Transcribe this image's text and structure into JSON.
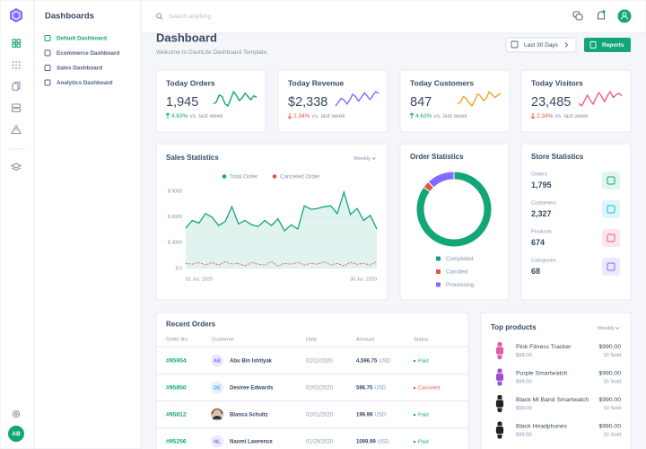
{
  "sidebar": {
    "title": "Dashboards",
    "menu": [
      "Default Dashboard",
      "Ecommerce Dashboard",
      "Sales Dashboard",
      "Analytics Dashboard"
    ],
    "user_initials": "AB"
  },
  "header": {
    "search_placeholder": "Search anything"
  },
  "page": {
    "title": "Dashboard",
    "subtitle": "Welcome to DashLite Dashboard Template.",
    "range_button": "Last 30 Days",
    "reports_button": "Reports"
  },
  "stats": [
    {
      "title": "Today Orders",
      "value": "1,945",
      "change": "4.63%",
      "direction": "up",
      "note": "vs. last week",
      "color": "#12a679",
      "trend": [
        40,
        45,
        62,
        58,
        40,
        35,
        52,
        70,
        60,
        48,
        55,
        66,
        58,
        50,
        60,
        56
      ]
    },
    {
      "title": "Today Revenue",
      "value": "$2,338",
      "change": "2.34%",
      "direction": "down",
      "note": "vs. last week",
      "color": "#816bff",
      "trend": [
        30,
        42,
        55,
        48,
        36,
        50,
        68,
        60,
        45,
        58,
        72,
        62,
        50,
        64,
        76,
        70
      ]
    },
    {
      "title": "Today Customers",
      "value": "847",
      "change": "4.63%",
      "direction": "up",
      "note": "vs. last week",
      "color": "#f4a32c",
      "trend": [
        35,
        40,
        55,
        50,
        38,
        30,
        45,
        62,
        56,
        44,
        50,
        68,
        60,
        52,
        58,
        64
      ]
    },
    {
      "title": "Today Visitors",
      "value": "23,485",
      "change": "2.34%",
      "direction": "down",
      "note": "vs. last week",
      "color": "#ee5d8a",
      "trend": [
        42,
        36,
        48,
        62,
        50,
        40,
        55,
        68,
        58,
        46,
        60,
        70,
        56,
        62,
        66,
        60
      ]
    }
  ],
  "sales": {
    "title": "Sales Statistics",
    "period": "Weekly",
    "chart_data": {
      "type": "area",
      "categories": [
        "01 Jul, 2020",
        null,
        null,
        null,
        null,
        null,
        null,
        null,
        null,
        null,
        null,
        null,
        null,
        null,
        null,
        null,
        null,
        null,
        null,
        null,
        null,
        null,
        null,
        null,
        null,
        null,
        null,
        null,
        null,
        "30 Jul, 2020"
      ],
      "series": [
        {
          "name": "Total Order",
          "color": "#12a679",
          "values": [
            4700,
            5600,
            5300,
            6400,
            6000,
            5000,
            5500,
            7200,
            5200,
            5600,
            5100,
            4900,
            5600,
            5000,
            5800,
            4400,
            5100,
            4600,
            7300,
            6900,
            7000,
            7200,
            7300,
            6400,
            8900,
            6300,
            7000,
            5600,
            6200,
            4600
          ]
        },
        {
          "name": "Canceled Order",
          "color": "#e85347",
          "values": [
            600,
            500,
            700,
            400,
            700,
            400,
            800,
            500,
            600,
            300,
            700,
            500,
            400,
            800,
            300,
            600,
            500,
            700,
            400,
            600,
            500,
            800,
            400,
            600,
            300,
            700,
            500,
            600,
            400,
            800
          ]
        }
      ],
      "ylim": [
        0,
        9000
      ],
      "yticks": [
        {
          "value": 0,
          "label": "$ 0"
        },
        {
          "value": 3000,
          "label": "$ 3000"
        },
        {
          "value": 6000,
          "label": "$ 6000"
        },
        {
          "value": 9000,
          "label": "$ 9000"
        }
      ]
    }
  },
  "order_statistics": {
    "title": "Order Statistics",
    "chart_data": {
      "type": "donut",
      "categories": [
        "Completed",
        "Canclled",
        "Processing"
      ],
      "values": [
        85,
        3,
        12
      ],
      "colors": [
        "#12a679",
        "#e85347",
        "#816bff"
      ]
    }
  },
  "store": {
    "title": "Store Statistics",
    "items": [
      {
        "label": "Orders",
        "value": "1,795",
        "color": "#12a679",
        "bg": "#e0f5ee"
      },
      {
        "label": "Customers",
        "value": "2,327",
        "color": "#09c2de",
        "bg": "#def6fa"
      },
      {
        "label": "Products",
        "value": "674",
        "color": "#ee5d8a",
        "bg": "#fde6ee"
      },
      {
        "label": "Categories",
        "value": "68",
        "color": "#816bff",
        "bg": "#ece8ff"
      }
    ]
  },
  "recent_orders": {
    "title": "Recent Orders",
    "columns": [
      "Order No.",
      "Customer",
      "Date",
      "Amount",
      "Status"
    ],
    "rows": [
      {
        "order": "#95954",
        "initials": "AB",
        "avatar_color": "#816bff",
        "customer": "Abu Bin Ishtiyak",
        "date": "02/11/2020",
        "amount": "4,596.75",
        "currency": "USD",
        "status": "Paid",
        "status_color": "#12a679"
      },
      {
        "order": "#95850",
        "initials": "DE",
        "avatar_color": "#559bfb",
        "customer": "Desiree Edwards",
        "date": "02/02/2020",
        "amount": "596.75",
        "currency": "USD",
        "status": "Canceled",
        "status_color": "#e85347"
      },
      {
        "order": "#95812",
        "avatar_color": "#6b4e3d",
        "customer": "Blanca Schultz",
        "date": "02/01/2020",
        "amount": "199.99",
        "currency": "USD",
        "status": "Paid",
        "status_color": "#12a679"
      },
      {
        "order": "#95256",
        "initials": "NL",
        "avatar_color": "#816bff",
        "customer": "Naomi Lawrence",
        "date": "01/29/2020",
        "amount": "1099.99",
        "currency": "USD",
        "status": "Paid",
        "status_color": "#12a679"
      }
    ]
  },
  "top_products": {
    "title": "Top products",
    "period": "Weekly",
    "items": [
      {
        "name": "Pink Fitness Tracker",
        "price": "$99.00",
        "total": "$990.00",
        "sold": "10 Sold",
        "color": "#e05ca8"
      },
      {
        "name": "Purple Smartwatch",
        "price": "$99.00",
        "total": "$990.00",
        "sold": "10 Sold",
        "color": "#9b4fd1"
      },
      {
        "name": "Black Mi Band Smartwatch",
        "price": "$99.00",
        "total": "$990.00",
        "sold": "10 Sold",
        "color": "#222"
      },
      {
        "name": "Black Headphones",
        "price": "$99.00",
        "total": "$990.00",
        "sold": "10 Sold",
        "color": "#222"
      }
    ]
  }
}
